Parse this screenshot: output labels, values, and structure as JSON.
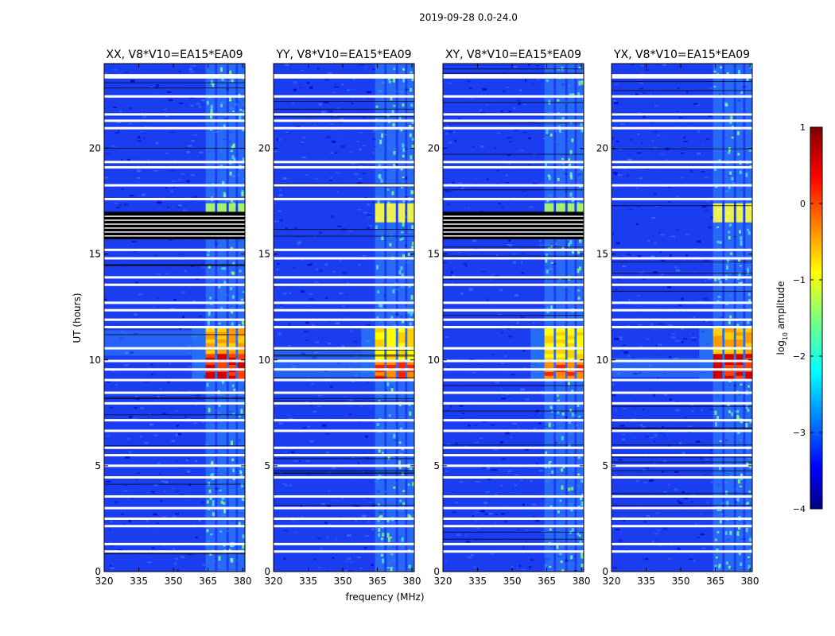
{
  "chart_data": {
    "type": "heatmap",
    "title": "2019-09-28 0.0-24.0",
    "xlabel": "frequency (MHz)",
    "ylabel": "UT (hours)",
    "xlim": [
      320,
      381
    ],
    "ylim": [
      0,
      24
    ],
    "xticks": [
      320,
      335,
      350,
      365,
      380
    ],
    "xtick_labels": [
      "320",
      "335",
      "350",
      "365",
      "380"
    ],
    "yticks": [
      0,
      5,
      10,
      15,
      20
    ],
    "ytick_labels": [
      "0",
      "5",
      "10",
      "15",
      "20"
    ],
    "colorbar": {
      "label": "log",
      "label_sub": "10",
      "label_rest": " amplitude",
      "range": [
        -4,
        1
      ],
      "ticks": [
        1,
        0,
        -1,
        -2,
        -3,
        -4
      ],
      "tick_labels": [
        "1",
        "0",
        "−1",
        "−2",
        "−3",
        "−4"
      ],
      "colormap": "jet"
    },
    "panels": [
      {
        "title": "XX, V8*V10=EA15*EA09",
        "flag_blocks": [
          [
            15.7,
            17.0
          ]
        ],
        "drift_band": [
          10.2,
          11.4
        ]
      },
      {
        "title": "YY, V8*V10=EA15*EA09",
        "flag_blocks": [],
        "drift_band": [
          9.0,
          10.5
        ]
      },
      {
        "title": "XY, V8*V10=EA15*EA09",
        "flag_blocks": [
          [
            15.7,
            17.0
          ]
        ],
        "drift_band": []
      },
      {
        "title": "YX, V8*V10=EA15*EA09",
        "flag_blocks": [],
        "drift_band": [
          9.2,
          10.1
        ]
      }
    ],
    "rfi_channels_mhz": [
      [
        364,
        368
      ],
      [
        369,
        373
      ],
      [
        374,
        377
      ],
      [
        378,
        381
      ]
    ],
    "strong_rfi_hours": [
      [
        9.1,
        11.5
      ],
      [
        16.5,
        17.4
      ]
    ],
    "flagged_hours": [
      0.95,
      1.3,
      2.15,
      2.5,
      3.0,
      3.55,
      4.45,
      5.0,
      5.5,
      5.85,
      6.65,
      7.15,
      7.95,
      8.45,
      9.05,
      9.55,
      9.95,
      10.55,
      11.55,
      11.9,
      12.35,
      12.7,
      13.55,
      13.9,
      14.8,
      15.2,
      17.6,
      18.25,
      19.1,
      19.35,
      20.95,
      21.3,
      21.6,
      22.45,
      23.35,
      23.45
    ]
  }
}
